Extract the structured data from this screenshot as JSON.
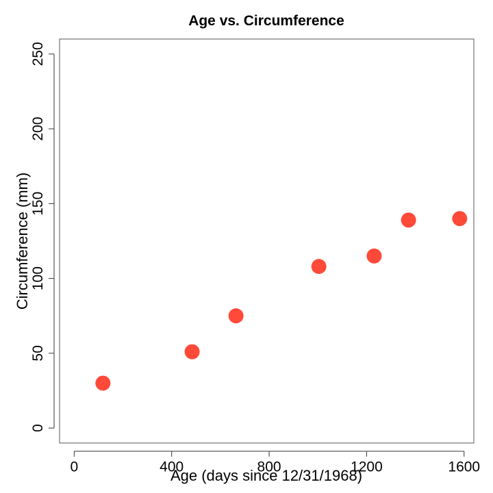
{
  "colors": {
    "point": "#ff4a3a"
  },
  "chart_data": {
    "type": "scatter",
    "title": "Age vs. Circumference",
    "xlabel": "Age (days since 12/31/1968)",
    "ylabel": "Circumference (mm)",
    "xlim": [
      -60,
      1640
    ],
    "ylim": [
      -10,
      260
    ],
    "xticks": [
      0,
      400,
      800,
      1200,
      1600
    ],
    "yticks": [
      0,
      50,
      100,
      150,
      200,
      250
    ],
    "grid": false,
    "legend": "none",
    "points": [
      {
        "x": 118,
        "y": 30
      },
      {
        "x": 484,
        "y": 51
      },
      {
        "x": 664,
        "y": 75
      },
      {
        "x": 1004,
        "y": 108
      },
      {
        "x": 1231,
        "y": 115
      },
      {
        "x": 1372,
        "y": 139
      },
      {
        "x": 1582,
        "y": 140
      }
    ]
  }
}
